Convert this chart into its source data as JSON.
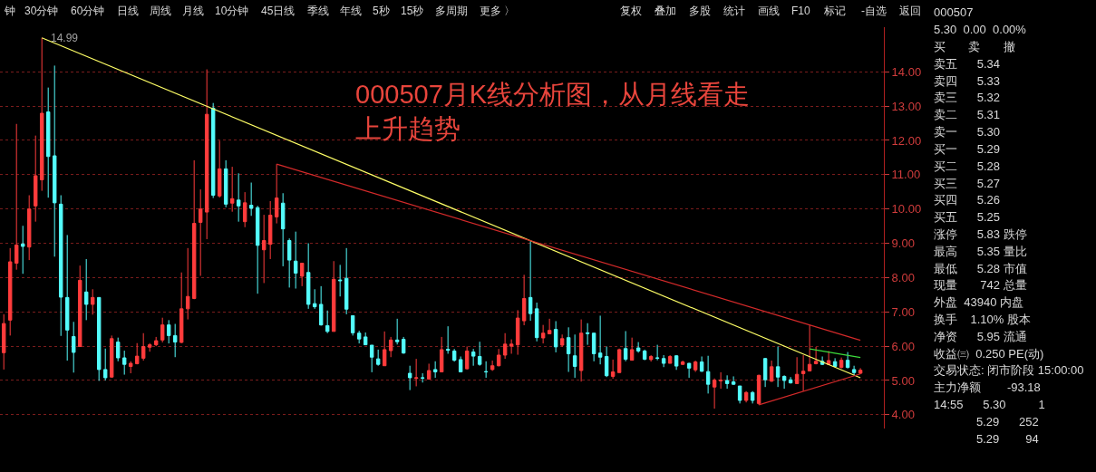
{
  "chart_data": {
    "type": "candlestick",
    "tick_labels": "y",
    "grid": "y",
    "ylim": [
      3.6,
      15.3
    ],
    "title": "000507月K线分析图，从月线看走上升趋势",
    "yticks": [
      {
        "value": 4,
        "label": "4.00"
      },
      {
        "value": 5,
        "label": "5.00"
      },
      {
        "value": 6,
        "label": "6.00"
      },
      {
        "value": 7,
        "label": "7.00"
      },
      {
        "value": 8,
        "label": "8.00"
      },
      {
        "value": 9,
        "label": "9.00"
      },
      {
        "value": 10,
        "label": "10.00"
      },
      {
        "value": 11,
        "label": "11.00"
      },
      {
        "value": 12,
        "label": "12.00"
      },
      {
        "value": 13,
        "label": "13.00"
      },
      {
        "value": 14,
        "label": "14.00"
      }
    ],
    "annotations": [
      "14.99",
      "钟",
      "30分钟",
      "60分钟",
      "日线",
      "周线",
      "月线",
      "10分钟",
      "45日线",
      "季线",
      "年线",
      "5秒",
      "15秒",
      "多周期",
      "更多 〉",
      "复权",
      "叠加",
      "多股",
      "统计",
      "画线",
      "F10",
      "标记",
      "-自选",
      "返回",
      "000507",
      "5.30  0.00  0.00%",
      "买       卖       撤",
      "卖五      5.34",
      "卖四      5.33",
      "卖三      5.32",
      "卖二      5.31",
      "卖一      5.30",
      "买一      5.29",
      "买二      5.28",
      "买三      5.27",
      "买四      5.26",
      "买五      5.25",
      "涨停      5.83 跌停",
      "最高      5.35 量比",
      "最低      5.28 市值",
      "现量       742 总量",
      "外盘  43940 内盘",
      "换手    1.10% 股本",
      "净资      5.95 流通",
      "收益㈢  0.250 PE(动)",
      "交易状态: 闭市阶段 15:00:00",
      "主力净额        -93.18",
      "14:55      5.30          1",
      "             5.29      252",
      "             5.29        94"
    ],
    "categories": [
      null,
      null,
      null,
      null,
      null,
      null,
      null,
      null,
      null,
      null,
      null,
      null,
      null,
      null,
      null,
      null,
      null,
      null,
      null,
      null,
      null,
      null,
      null,
      null,
      null,
      null,
      null,
      null,
      null,
      null,
      null,
      null,
      null,
      null,
      null,
      null,
      null,
      null,
      null,
      null,
      null,
      null,
      null,
      null,
      null,
      null,
      null,
      null,
      null,
      null,
      null,
      null,
      null,
      null,
      null,
      null,
      null,
      null,
      null,
      null,
      null,
      null,
      null,
      null,
      null,
      null,
      null,
      null,
      null,
      null,
      null,
      null,
      null,
      null,
      null,
      null,
      null,
      null,
      null,
      null,
      null,
      null,
      null,
      null,
      null,
      null,
      null,
      null,
      null,
      null,
      null,
      null,
      null,
      null,
      null,
      null,
      null,
      null,
      null,
      null,
      null,
      null,
      null,
      null,
      null,
      null,
      null,
      null,
      null,
      null,
      null,
      null,
      null,
      null,
      null,
      null,
      null,
      null,
      null,
      null,
      null,
      null,
      null,
      null,
      null,
      null,
      null,
      null,
      null,
      null,
      null,
      null,
      null,
      null,
      null,
      null
    ],
    "ohlc": [
      [
        5.81,
        6.93,
        5.32,
        6.66
      ],
      [
        6.76,
        8.86,
        6.31,
        8.46
      ],
      [
        8.42,
        12.48,
        8.23,
        8.95
      ],
      [
        8.98,
        9.51,
        8.11,
        8.91
      ],
      [
        8.89,
        10.4,
        8.51,
        10.0
      ],
      [
        10.09,
        12.14,
        9.63,
        10.97
      ],
      [
        10.85,
        14.99,
        10.53,
        12.79
      ],
      [
        12.83,
        13.54,
        10.33,
        11.53
      ],
      [
        11.55,
        14.18,
        8.61,
        10.18
      ],
      [
        10.14,
        10.4,
        6.3,
        7.43
      ],
      [
        7.42,
        9.24,
        5.58,
        6.47
      ],
      [
        6.28,
        6.71,
        5.23,
        5.82
      ],
      [
        5.99,
        8.35,
        5.98,
        7.92
      ],
      [
        7.58,
        8.54,
        6.76,
        7.22
      ],
      [
        7.22,
        7.66,
        6.92,
        7.42
      ],
      [
        7.42,
        7.42,
        4.99,
        5.32
      ],
      [
        5.32,
        5.93,
        5.0,
        5.08
      ],
      [
        5.1,
        6.31,
        5.08,
        6.22
      ],
      [
        6.12,
        6.25,
        5.56,
        5.66
      ],
      [
        5.66,
        5.87,
        5.17,
        5.47
      ],
      [
        5.41,
        5.56,
        5.21,
        5.5
      ],
      [
        5.49,
        6.09,
        5.47,
        5.71
      ],
      [
        5.65,
        6.38,
        5.58,
        5.99
      ],
      [
        5.97,
        6.09,
        5.84,
        6.04
      ],
      [
        6.04,
        6.27,
        6.0,
        6.16
      ],
      [
        6.18,
        6.83,
        6.11,
        6.62
      ],
      [
        6.62,
        6.76,
        6.08,
        6.31
      ],
      [
        6.31,
        6.65,
        5.68,
        6.12
      ],
      [
        6.11,
        8.15,
        6.09,
        7.09
      ],
      [
        7.09,
        8.86,
        6.78,
        7.45
      ],
      [
        7.39,
        11.42,
        7.37,
        9.58
      ],
      [
        9.61,
        10.57,
        8.05,
        10.0
      ],
      [
        9.91,
        14.07,
        9.12,
        12.76
      ],
      [
        12.94,
        13.09,
        10.32,
        10.4
      ],
      [
        10.38,
        11.99,
        10.33,
        11.17
      ],
      [
        11.17,
        11.42,
        10.05,
        10.14
      ],
      [
        10.17,
        11.23,
        9.92,
        10.3
      ],
      [
        10.26,
        11.04,
        9.63,
        10.09
      ],
      [
        9.63,
        10.49,
        9.47,
        10.18
      ],
      [
        10.11,
        10.77,
        9.8,
        10.02
      ],
      [
        10.04,
        10.09,
        7.53,
        8.94
      ],
      [
        8.81,
        9.83,
        7.84,
        9.08
      ],
      [
        8.97,
        10.23,
        8.54,
        9.82
      ],
      [
        9.77,
        11.31,
        9.58,
        10.32
      ],
      [
        10.17,
        10.46,
        8.33,
        9.42
      ],
      [
        9.08,
        9.14,
        7.71,
        8.51
      ],
      [
        8.48,
        9.34,
        7.68,
        8.13
      ],
      [
        8.04,
        8.42,
        7.75,
        8.42
      ],
      [
        8.15,
        9.0,
        7.09,
        7.22
      ],
      [
        7.24,
        7.66,
        7.09,
        7.15
      ],
      [
        7.22,
        7.75,
        6.6,
        6.62
      ],
      [
        6.6,
        7.04,
        6.38,
        6.43
      ],
      [
        6.43,
        8.48,
        6.43,
        7.95
      ],
      [
        7.93,
        8.37,
        7.45,
        7.91
      ],
      [
        7.98,
        8.86,
        6.93,
        7.08
      ],
      [
        6.89,
        6.89,
        6.31,
        6.39
      ],
      [
        6.38,
        6.45,
        6.08,
        6.21
      ],
      [
        6.27,
        6.4,
        6.03,
        6.04
      ],
      [
        6.03,
        6.03,
        5.24,
        5.68
      ],
      [
        5.63,
        5.9,
        5.43,
        5.47
      ],
      [
        5.43,
        6.43,
        5.43,
        5.9
      ],
      [
        5.87,
        6.27,
        5.68,
        6.18
      ],
      [
        6.18,
        6.8,
        6.05,
        6.13
      ],
      [
        6.2,
        6.27,
        5.78,
        5.8
      ],
      [
        5.21,
        5.43,
        4.72,
        5.08
      ],
      [
        5.06,
        5.63,
        4.83,
        5.08
      ],
      [
        5.08,
        5.21,
        4.94,
        5.07
      ],
      [
        5.04,
        5.49,
        5.04,
        5.29
      ],
      [
        5.32,
        5.56,
        5.08,
        5.25
      ],
      [
        5.25,
        6.27,
        5.25,
        5.9
      ],
      [
        5.91,
        6.58,
        5.78,
        5.88
      ],
      [
        5.86,
        5.92,
        5.55,
        5.59
      ],
      [
        5.61,
        5.7,
        5.25,
        5.25
      ],
      [
        5.34,
        5.99,
        5.32,
        5.86
      ],
      [
        5.83,
        5.92,
        5.43,
        5.71
      ],
      [
        5.7,
        6.13,
        5.43,
        5.47
      ],
      [
        5.26,
        5.56,
        5.08,
        5.25
      ],
      [
        5.32,
        5.58,
        5.28,
        5.43
      ],
      [
        5.43,
        5.92,
        5.41,
        5.74
      ],
      [
        5.74,
        6.38,
        5.63,
        6.06
      ],
      [
        6.0,
        6.2,
        5.78,
        6.06
      ],
      [
        6.04,
        7.05,
        5.75,
        6.82
      ],
      [
        6.74,
        8.08,
        6.61,
        7.39
      ],
      [
        7.42,
        9.06,
        6.74,
        6.95
      ],
      [
        7.09,
        7.27,
        6.14,
        6.25
      ],
      [
        6.24,
        6.62,
        6.08,
        6.38
      ],
      [
        6.36,
        6.8,
        6.36,
        6.46
      ],
      [
        6.49,
        6.73,
        5.82,
        5.98
      ],
      [
        6.03,
        6.34,
        5.98,
        6.22
      ],
      [
        6.25,
        6.55,
        5.25,
        5.78
      ],
      [
        5.72,
        6.34,
        5.08,
        5.41
      ],
      [
        5.29,
        6.78,
        4.97,
        6.38
      ],
      [
        6.39,
        6.67,
        6.04,
        6.37
      ],
      [
        6.38,
        6.38,
        5.56,
        5.78
      ],
      [
        5.8,
        6.89,
        5.47,
        5.68
      ],
      [
        5.7,
        5.99,
        5.1,
        5.14
      ],
      [
        5.12,
        5.61,
        5.05,
        5.25
      ],
      [
        5.23,
        5.93,
        5.23,
        5.9
      ],
      [
        5.93,
        6.44,
        5.56,
        5.62
      ],
      [
        5.59,
        6.25,
        5.58,
        5.9
      ],
      [
        5.95,
        6.12,
        5.81,
        5.86
      ],
      [
        5.86,
        5.9,
        5.59,
        5.62
      ],
      [
        5.61,
        5.74,
        5.55,
        5.7
      ],
      [
        5.66,
        6.04,
        5.59,
        5.65
      ],
      [
        5.64,
        5.74,
        5.39,
        5.5
      ],
      [
        5.5,
        5.74,
        5.5,
        5.7
      ],
      [
        5.72,
        5.74,
        5.31,
        5.42
      ],
      [
        5.47,
        5.58,
        5.45,
        5.54
      ],
      [
        5.5,
        5.51,
        5.08,
        5.36
      ],
      [
        5.31,
        5.58,
        5.25,
        5.54
      ],
      [
        5.54,
        5.7,
        5.25,
        5.27
      ],
      [
        5.26,
        5.72,
        4.62,
        4.89
      ],
      [
        4.81,
        5.06,
        4.18,
        5.01
      ],
      [
        4.99,
        5.24,
        4.76,
        5.01
      ],
      [
        5.0,
        5.15,
        4.76,
        4.91
      ],
      [
        4.96,
        5.12,
        4.87,
        4.89
      ],
      [
        4.84,
        4.84,
        4.33,
        4.42
      ],
      [
        4.42,
        4.69,
        4.36,
        4.65
      ],
      [
        4.65,
        4.69,
        4.33,
        4.42
      ],
      [
        4.33,
        5.17,
        4.29,
        5.15
      ],
      [
        5.64,
        5.66,
        4.81,
        5.02
      ],
      [
        4.98,
        5.58,
        4.96,
        5.4
      ],
      [
        5.4,
        5.99,
        4.81,
        5.1
      ],
      [
        5.12,
        5.15,
        4.76,
        5.0
      ],
      [
        5.02,
        5.1,
        4.91,
        4.93
      ],
      [
        4.91,
        5.68,
        4.91,
        5.18
      ],
      [
        5.2,
        5.74,
        4.69,
        5.27
      ],
      [
        5.28,
        6.62,
        5.28,
        5.47
      ],
      [
        5.49,
        5.98,
        5.47,
        5.56
      ],
      [
        5.56,
        5.7,
        5.45,
        5.47
      ],
      [
        5.47,
        5.86,
        5.45,
        5.58
      ],
      [
        5.55,
        5.65,
        5.39,
        5.41
      ],
      [
        5.38,
        5.67,
        5.35,
        5.59
      ],
      [
        5.59,
        5.83,
        5.35,
        5.38
      ],
      [
        5.32,
        5.43,
        5.15,
        5.23
      ],
      [
        5.21,
        5.36,
        5.19,
        5.3
      ]
    ],
    "series": [
      {
        "type": "line",
        "color": "#ffff66",
        "values": [
          null,
          null,
          null,
          null,
          null,
          null,
          14.99,
          null,
          null,
          null,
          null,
          null,
          null,
          null,
          null,
          null,
          null,
          null,
          null,
          null,
          null,
          null,
          null,
          null,
          null,
          null,
          null,
          null,
          null,
          null,
          null,
          null,
          null,
          null,
          null,
          null,
          null,
          null,
          null,
          null,
          null,
          null,
          null,
          null,
          null,
          null,
          null,
          null,
          null,
          null,
          null,
          null,
          null,
          null,
          null,
          null,
          null,
          null,
          null,
          null,
          null,
          null,
          null,
          null,
          null,
          null,
          null,
          null,
          null,
          null,
          null,
          null,
          null,
          null,
          null,
          null,
          null,
          null,
          null,
          null,
          null,
          null,
          null,
          null,
          null,
          null,
          null,
          null,
          null,
          null,
          null,
          null,
          null,
          null,
          null,
          null,
          null,
          null,
          null,
          null,
          null,
          null,
          null,
          null,
          null,
          null,
          null,
          null,
          null,
          null,
          null,
          null,
          null,
          null,
          null,
          null,
          null,
          null,
          null,
          null,
          null,
          null,
          null,
          null,
          null,
          null,
          null,
          null,
          null,
          null,
          null,
          null,
          null,
          null,
          null,
          5.08
        ]
      },
      {
        "type": "line",
        "color": "#d42a2a",
        "values": [
          null,
          null,
          null,
          null,
          null,
          null,
          null,
          null,
          null,
          null,
          null,
          null,
          null,
          null,
          null,
          null,
          null,
          null,
          null,
          null,
          null,
          null,
          null,
          null,
          null,
          null,
          null,
          null,
          null,
          null,
          null,
          null,
          null,
          null,
          null,
          null,
          null,
          null,
          null,
          null,
          null,
          null,
          null,
          11.31,
          null,
          null,
          null,
          null,
          null,
          null,
          null,
          null,
          null,
          null,
          null,
          null,
          null,
          null,
          null,
          null,
          null,
          null,
          null,
          null,
          null,
          null,
          null,
          null,
          null,
          null,
          null,
          null,
          null,
          null,
          null,
          null,
          null,
          null,
          null,
          null,
          null,
          null,
          null,
          null,
          null,
          null,
          null,
          null,
          null,
          null,
          null,
          null,
          null,
          null,
          null,
          null,
          null,
          null,
          null,
          null,
          null,
          null,
          null,
          null,
          null,
          null,
          null,
          null,
          null,
          null,
          null,
          null,
          null,
          null,
          null,
          null,
          null,
          null,
          null,
          null,
          null,
          null,
          null,
          null,
          null,
          null,
          null,
          null,
          null,
          null,
          null,
          null,
          null,
          null,
          null,
          6.17
        ]
      },
      {
        "type": "line",
        "color": "#d42a2a",
        "values": [
          null,
          null,
          null,
          null,
          null,
          null,
          null,
          null,
          null,
          null,
          null,
          null,
          null,
          null,
          null,
          null,
          null,
          null,
          null,
          null,
          null,
          null,
          null,
          null,
          null,
          null,
          null,
          null,
          null,
          null,
          null,
          null,
          null,
          null,
          null,
          null,
          null,
          null,
          null,
          null,
          null,
          null,
          null,
          null,
          null,
          null,
          null,
          null,
          null,
          null,
          null,
          null,
          null,
          null,
          null,
          null,
          null,
          null,
          null,
          null,
          null,
          null,
          null,
          null,
          null,
          null,
          null,
          null,
          null,
          null,
          null,
          null,
          null,
          null,
          null,
          null,
          null,
          null,
          null,
          null,
          null,
          null,
          null,
          null,
          null,
          null,
          null,
          null,
          null,
          null,
          null,
          null,
          null,
          null,
          null,
          null,
          null,
          null,
          null,
          null,
          null,
          null,
          null,
          null,
          null,
          null,
          null,
          null,
          null,
          null,
          null,
          null,
          null,
          null,
          null,
          null,
          null,
          null,
          null,
          4.29,
          null,
          null,
          null,
          null,
          null,
          null,
          null,
          null,
          null,
          null,
          null,
          null,
          null,
          null,
          null,
          5.19
        ]
      },
      {
        "type": "line",
        "color": "#3cdc3c",
        "values": [
          null,
          null,
          null,
          null,
          null,
          null,
          null,
          null,
          null,
          null,
          null,
          null,
          null,
          null,
          null,
          null,
          null,
          null,
          null,
          null,
          null,
          null,
          null,
          null,
          null,
          null,
          null,
          null,
          null,
          null,
          null,
          null,
          null,
          null,
          null,
          null,
          null,
          null,
          null,
          null,
          null,
          null,
          null,
          null,
          null,
          null,
          null,
          null,
          null,
          null,
          null,
          null,
          null,
          null,
          null,
          null,
          null,
          null,
          null,
          null,
          null,
          null,
          null,
          null,
          null,
          null,
          null,
          null,
          null,
          null,
          null,
          null,
          null,
          null,
          null,
          null,
          null,
          null,
          null,
          null,
          null,
          null,
          null,
          null,
          null,
          null,
          null,
          null,
          null,
          null,
          null,
          null,
          null,
          null,
          null,
          null,
          null,
          null,
          null,
          null,
          null,
          null,
          null,
          null,
          null,
          null,
          null,
          null,
          null,
          null,
          null,
          null,
          null,
          null,
          null,
          null,
          null,
          null,
          null,
          null,
          null,
          null,
          null,
          null,
          null,
          null,
          null,
          5.92,
          null,
          null,
          null,
          null,
          null,
          null,
          null,
          5.67
        ]
      }
    ]
  }
}
